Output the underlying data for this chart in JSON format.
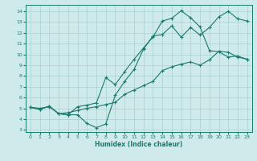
{
  "xlabel": "Humidex (Indice chaleur)",
  "bg_color": "#ceeaea",
  "line_color": "#1a7a6e",
  "grid_color": "#aacfcf",
  "xlim": [
    -0.5,
    23.5
  ],
  "ylim": [
    2.8,
    14.6
  ],
  "yticks": [
    3,
    4,
    5,
    6,
    7,
    8,
    9,
    10,
    11,
    12,
    13,
    14
  ],
  "xticks": [
    0,
    1,
    2,
    3,
    4,
    5,
    6,
    7,
    8,
    9,
    10,
    11,
    12,
    13,
    14,
    15,
    16,
    17,
    18,
    19,
    20,
    21,
    22,
    23
  ],
  "curve1_x": [
    0,
    1,
    2,
    3,
    4,
    5,
    6,
    7,
    8,
    9,
    10,
    11,
    12,
    13,
    14,
    15,
    16,
    17,
    18,
    19,
    20,
    21,
    22,
    23
  ],
  "curve1_y": [
    5.1,
    4.9,
    5.2,
    4.5,
    4.4,
    4.4,
    3.6,
    3.2,
    3.55,
    6.2,
    7.5,
    8.6,
    10.5,
    11.7,
    11.85,
    12.65,
    11.6,
    12.5,
    11.8,
    12.5,
    13.5,
    14.0,
    13.3,
    13.1
  ],
  "curve2_x": [
    0,
    1,
    2,
    3,
    4,
    5,
    6,
    7,
    8,
    9,
    10,
    11,
    12,
    13,
    14,
    15,
    16,
    17,
    18,
    19,
    20,
    21,
    22,
    23
  ],
  "curve2_y": [
    5.1,
    4.9,
    5.2,
    4.5,
    4.4,
    5.15,
    5.3,
    5.5,
    7.85,
    7.2,
    8.4,
    9.55,
    10.6,
    11.6,
    13.1,
    13.35,
    14.05,
    13.4,
    12.55,
    10.35,
    10.25,
    9.75,
    9.85,
    9.55
  ],
  "curve3_x": [
    0,
    1,
    2,
    3,
    4,
    5,
    6,
    7,
    8,
    9,
    10,
    11,
    12,
    13,
    14,
    15,
    16,
    17,
    18,
    19,
    20,
    21,
    22,
    23
  ],
  "curve3_y": [
    5.1,
    5.0,
    5.15,
    4.5,
    4.6,
    4.8,
    5.0,
    5.15,
    5.35,
    5.55,
    6.3,
    6.7,
    7.1,
    7.5,
    8.5,
    8.85,
    9.1,
    9.3,
    9.0,
    9.5,
    10.3,
    10.2,
    9.75,
    9.55
  ]
}
